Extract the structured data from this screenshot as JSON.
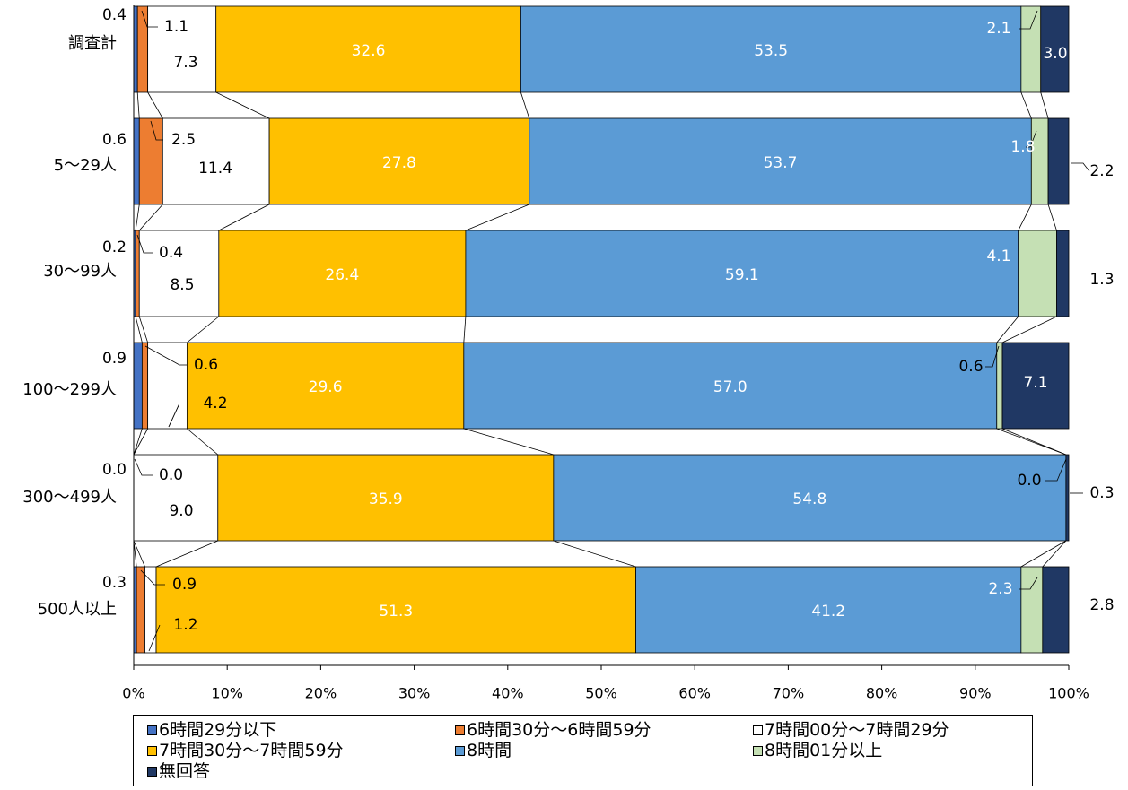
{
  "chart_data": {
    "type": "bar",
    "orientation": "horizontal",
    "stacked": "percent",
    "categories": [
      "調査計",
      "5～29人",
      "30～99人",
      "100～299人",
      "300～499人",
      "500人以上"
    ],
    "series": [
      {
        "name": "6時間29分以下",
        "color": "#4472C4",
        "values": [
          0.4,
          0.6,
          0.2,
          0.9,
          0.0,
          0.3
        ]
      },
      {
        "name": "6時間30分～6時間59分",
        "color": "#ED7D31",
        "values": [
          1.1,
          2.5,
          0.4,
          0.6,
          0.0,
          0.9
        ]
      },
      {
        "name": "7時間00分～7時間29分",
        "color": "#FFFFFF",
        "values": [
          7.3,
          11.4,
          8.5,
          4.2,
          9.0,
          1.2
        ]
      },
      {
        "name": "7時間30分～7時間59分",
        "color": "#FFC000",
        "values": [
          32.6,
          27.8,
          26.4,
          29.6,
          35.9,
          51.3
        ]
      },
      {
        "name": "8時間",
        "color": "#5B9BD5",
        "values": [
          53.5,
          53.7,
          59.1,
          57.0,
          54.8,
          41.2
        ]
      },
      {
        "name": "8時間01分以上",
        "color": "#C5E0B4",
        "values": [
          2.1,
          1.8,
          4.1,
          0.6,
          0.0,
          2.3
        ]
      },
      {
        "name": "無回答",
        "color": "#203864",
        "values": [
          3.0,
          2.2,
          1.3,
          7.1,
          0.3,
          2.8
        ]
      }
    ],
    "value_labels": [
      [
        "0.4",
        "1.1",
        "7.3",
        "32.6",
        "53.5",
        "2.1",
        "3.0"
      ],
      [
        "0.6",
        "2.5",
        "11.4",
        "27.8",
        "53.7",
        "1.8",
        "2.2"
      ],
      [
        "0.2",
        "0.4",
        "8.5",
        "26.4",
        "59.1",
        "4.1",
        "1.3"
      ],
      [
        "0.9",
        "0.6",
        "4.2",
        "29.6",
        "57.0",
        "0.6",
        "7.1"
      ],
      [
        "0.0",
        "0.0",
        "9.0",
        "35.9",
        "54.8",
        "0.0",
        "0.3"
      ],
      [
        "0.3",
        "0.9",
        "1.2",
        "51.3",
        "41.2",
        "2.3",
        "2.8"
      ]
    ],
    "x_ticks": [
      "0%",
      "10%",
      "20%",
      "30%",
      "40%",
      "50%",
      "60%",
      "70%",
      "80%",
      "90%",
      "100%"
    ],
    "xlim": [
      0,
      100
    ],
    "series_lines": true,
    "legend_position": "bottom"
  }
}
